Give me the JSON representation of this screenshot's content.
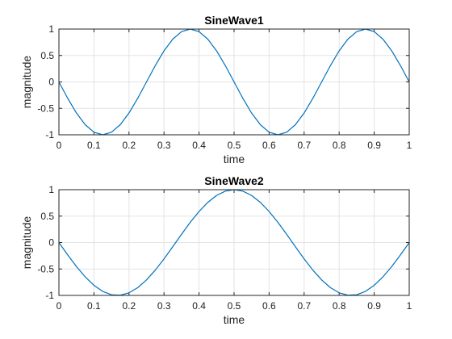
{
  "chart_data": [
    {
      "type": "line",
      "title": "SineWave1",
      "xlabel": "time",
      "ylabel": "magnitude",
      "xlim": [
        0,
        1
      ],
      "ylim": [
        -1,
        1
      ],
      "xticks": [
        "0",
        "0.1",
        "0.2",
        "0.3",
        "0.4",
        "0.5",
        "0.6",
        "0.7",
        "0.8",
        "0.9",
        "1"
      ],
      "yticks": [
        "-1",
        "-0.5",
        "0",
        "0.5",
        "1"
      ],
      "grid": true,
      "line_color": "#0072BD",
      "series": [
        {
          "x": [
            0,
            0.025,
            0.05,
            0.075,
            0.1,
            0.125,
            0.15,
            0.175,
            0.2,
            0.225,
            0.25,
            0.275,
            0.3,
            0.325,
            0.35,
            0.375,
            0.4,
            0.425,
            0.45,
            0.475,
            0.5,
            0.525,
            0.55,
            0.575,
            0.6,
            0.625,
            0.65,
            0.675,
            0.7,
            0.725,
            0.75,
            0.775,
            0.8,
            0.825,
            0.85,
            0.875,
            0.9,
            0.925,
            0.95,
            0.975,
            1
          ],
          "y": [
            0,
            -0.309,
            -0.588,
            -0.809,
            -0.951,
            -1,
            -0.951,
            -0.809,
            -0.588,
            -0.309,
            0,
            0.309,
            0.588,
            0.809,
            0.951,
            1,
            0.951,
            0.809,
            0.588,
            0.309,
            0,
            -0.309,
            -0.588,
            -0.809,
            -0.951,
            -1,
            -0.951,
            -0.809,
            -0.588,
            -0.309,
            0,
            0.309,
            0.588,
            0.809,
            0.951,
            1,
            0.951,
            0.809,
            0.588,
            0.309,
            0
          ]
        }
      ]
    },
    {
      "type": "line",
      "title": "SineWave2",
      "xlabel": "time",
      "ylabel": "magnitude",
      "xlim": [
        0,
        1
      ],
      "ylim": [
        -1,
        1
      ],
      "xticks": [
        "0",
        "0.1",
        "0.2",
        "0.3",
        "0.4",
        "0.5",
        "0.6",
        "0.7",
        "0.8",
        "0.9",
        "1"
      ],
      "yticks": [
        "-1",
        "-0.5",
        "0",
        "0.5",
        "1"
      ],
      "grid": true,
      "line_color": "#0072BD",
      "series": [
        {
          "x": [
            0,
            0.025,
            0.05,
            0.075,
            0.1,
            0.125,
            0.15,
            0.175,
            0.2,
            0.225,
            0.25,
            0.275,
            0.3,
            0.325,
            0.35,
            0.375,
            0.4,
            0.425,
            0.45,
            0.475,
            0.5,
            0.525,
            0.55,
            0.575,
            0.6,
            0.625,
            0.65,
            0.675,
            0.7,
            0.725,
            0.75,
            0.775,
            0.8,
            0.825,
            0.85,
            0.875,
            0.9,
            0.925,
            0.95,
            0.975,
            1
          ],
          "y": [
            0,
            -0.233,
            -0.454,
            -0.649,
            -0.809,
            -0.924,
            -0.988,
            -0.996,
            -0.951,
            -0.853,
            -0.707,
            -0.522,
            -0.309,
            -0.078,
            0.156,
            0.383,
            0.588,
            0.76,
            0.891,
            0.972,
            1,
            0.972,
            0.891,
            0.76,
            0.588,
            0.383,
            0.156,
            -0.078,
            -0.309,
            -0.522,
            -0.707,
            -0.853,
            -0.951,
            -0.996,
            -0.988,
            -0.924,
            -0.809,
            -0.649,
            -0.454,
            -0.233,
            0
          ]
        }
      ]
    }
  ]
}
